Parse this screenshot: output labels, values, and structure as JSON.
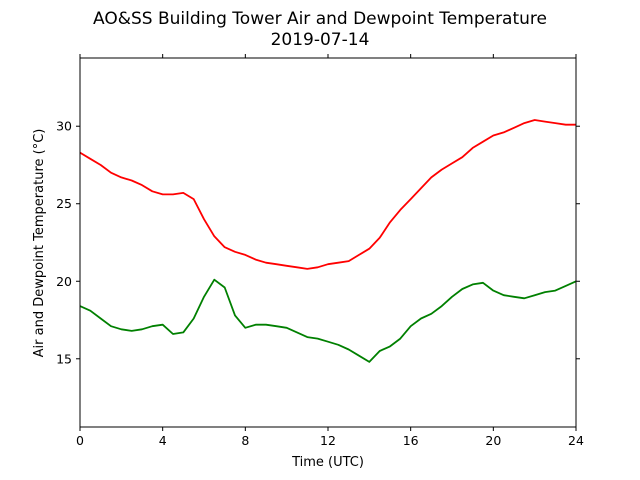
{
  "chart_data": {
    "type": "line",
    "title": "AO&SS Building Tower Air and Dewpoint Temperature",
    "subtitle": "2019-07-14",
    "xlabel": "Time (UTC)",
    "ylabel": "Air and Dewpoint Temperature (°C)",
    "xlim": [
      0,
      24
    ],
    "ylim": [
      10.6,
      34.4
    ],
    "x_ticks": [
      0,
      4,
      8,
      12,
      16,
      20,
      24
    ],
    "y_ticks": [
      15,
      20,
      25,
      30
    ],
    "grid": false,
    "legend": "none",
    "series": [
      {
        "color": "#ff0000",
        "x": [
          0,
          0.5,
          1,
          1.5,
          2,
          2.5,
          3,
          3.5,
          4,
          4.5,
          5,
          5.5,
          6,
          6.5,
          7,
          7.5,
          8,
          8.5,
          9,
          9.5,
          10,
          10.5,
          11,
          11.5,
          12,
          12.5,
          13,
          13.5,
          14,
          14.5,
          15,
          15.5,
          16,
          16.5,
          17,
          17.5,
          18,
          18.5,
          19,
          19.5,
          20,
          20.5,
          21,
          21.5,
          22,
          22.5,
          23,
          23.5,
          24
        ],
        "y": [
          28.3,
          27.9,
          27.5,
          27.0,
          26.7,
          26.5,
          26.2,
          25.8,
          25.6,
          25.6,
          25.7,
          25.3,
          24.0,
          22.9,
          22.2,
          21.9,
          21.7,
          21.4,
          21.2,
          21.1,
          21.0,
          20.9,
          20.8,
          20.9,
          21.1,
          21.2,
          21.3,
          21.7,
          22.1,
          22.8,
          23.8,
          24.6,
          25.3,
          26.0,
          26.7,
          27.2,
          27.6,
          28.0,
          28.6,
          29.0,
          29.4,
          29.6,
          29.9,
          30.2,
          30.4,
          30.3,
          30.2,
          30.1,
          30.1
        ]
      },
      {
        "color": "#008000",
        "x": [
          0,
          0.5,
          1,
          1.5,
          2,
          2.5,
          3,
          3.5,
          4,
          4.5,
          5,
          5.5,
          6,
          6.5,
          7,
          7.5,
          8,
          8.5,
          9,
          9.5,
          10,
          10.5,
          11,
          11.5,
          12,
          12.5,
          13,
          13.5,
          14,
          14.5,
          15,
          15.5,
          16,
          16.5,
          17,
          17.5,
          18,
          18.5,
          19,
          19.5,
          20,
          20.5,
          21,
          21.5,
          22,
          22.5,
          23,
          23.5,
          24
        ],
        "y": [
          18.4,
          18.1,
          17.6,
          17.1,
          16.9,
          16.8,
          16.9,
          17.1,
          17.2,
          16.6,
          16.7,
          17.6,
          19.0,
          20.1,
          19.6,
          17.8,
          17.0,
          17.2,
          17.2,
          17.1,
          17.0,
          16.7,
          16.4,
          16.3,
          16.1,
          15.9,
          15.6,
          15.2,
          14.8,
          15.5,
          15.8,
          16.3,
          17.1,
          17.6,
          17.9,
          18.4,
          19.0,
          19.5,
          19.8,
          19.9,
          19.4,
          19.1,
          19.0,
          18.9,
          19.1,
          19.3,
          19.4,
          19.7,
          20.0
        ]
      }
    ]
  }
}
